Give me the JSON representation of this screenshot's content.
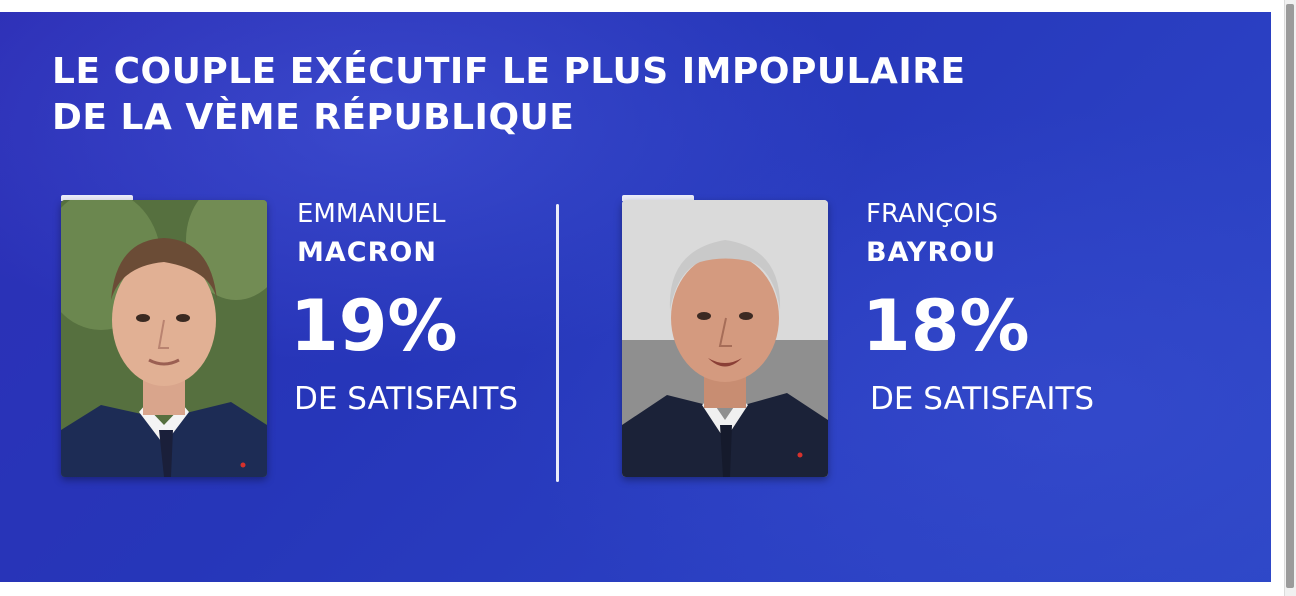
{
  "headline": {
    "line1": "LE COUPLE EXÉCUTIF LE PLUS IMPOPULAIRE",
    "line2": "DE LA VÈME RÉPUBLIQUE"
  },
  "people": [
    {
      "first_name": "EMMANUEL",
      "last_name": "MACRON",
      "percent": "19%",
      "caption": "DE SATISFAITS",
      "satisfaction_value": 19
    },
    {
      "first_name": "FRANÇOIS",
      "last_name": "BAYROU",
      "percent": "18%",
      "caption": "DE SATISFAITS",
      "satisfaction_value": 18
    }
  ],
  "colors": {
    "background": "#2a38bd",
    "text": "#ffffff"
  }
}
